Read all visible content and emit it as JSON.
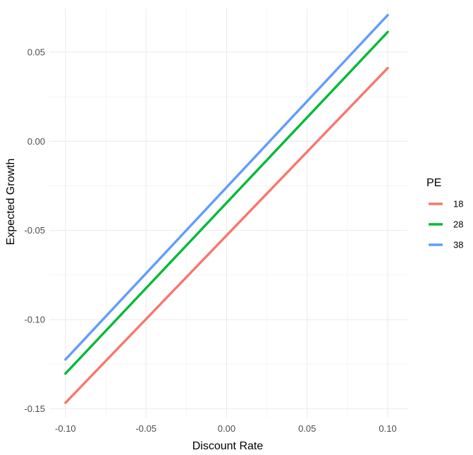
{
  "chart_data": {
    "type": "line",
    "xlabel": "Discount Rate",
    "ylabel": "Expected Growth",
    "xlim": [
      -0.1,
      0.1
    ],
    "ylim": [
      -0.155,
      0.0745
    ],
    "x_ticks": [
      -0.1,
      -0.05,
      0.0,
      0.05,
      0.1
    ],
    "x_tick_labels": [
      "-0.10",
      "-0.05",
      "0.00",
      "0.05",
      "0.10"
    ],
    "y_ticks": [
      -0.15,
      -0.1,
      -0.05,
      0.0,
      0.05
    ],
    "y_tick_labels": [
      "-0.15",
      "-0.10",
      "-0.05",
      "0.00",
      "0.05"
    ],
    "grid": true,
    "legend": {
      "title": "PE",
      "position": "right"
    },
    "series": [
      {
        "name": "18",
        "color": "#F8766D",
        "x": [
          -0.1,
          0.1
        ],
        "y": [
          -0.1467,
          0.0411
        ]
      },
      {
        "name": "28",
        "color": "#00BA38",
        "x": [
          -0.1,
          0.1
        ],
        "y": [
          -0.1303,
          0.0613
        ]
      },
      {
        "name": "38",
        "color": "#619CFF",
        "x": [
          -0.1,
          0.1
        ],
        "y": [
          -0.1224,
          0.0708
        ]
      }
    ]
  }
}
